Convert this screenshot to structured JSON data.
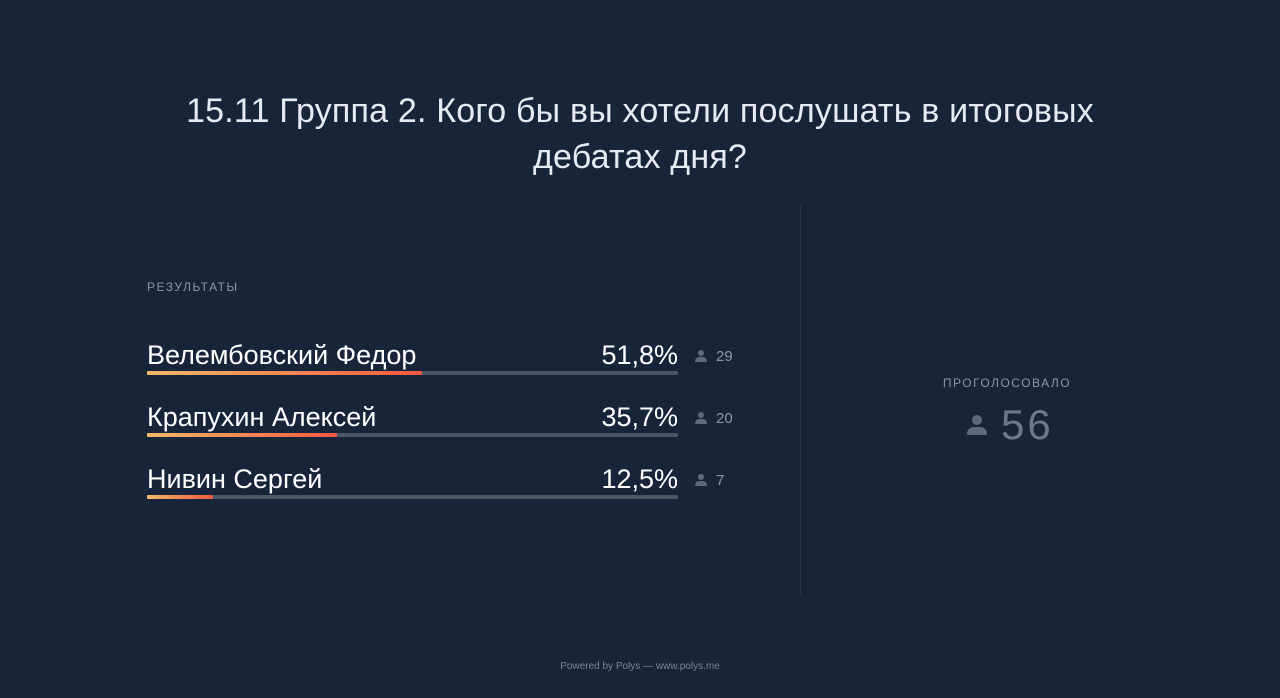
{
  "question": "15.11 Группа 2. Кого бы вы хотели послушать в итоговых дебатах дня?",
  "results_label": "РЕЗУЛЬТАТЫ",
  "options": [
    {
      "name": "Велембовский Федор",
      "percent_label": "51,8%",
      "percent": 51.8,
      "votes": "29"
    },
    {
      "name": "Крапухин Алексей",
      "percent_label": "35,7%",
      "percent": 35.7,
      "votes": "20"
    },
    {
      "name": "Нивин Сергей",
      "percent_label": "12,5%",
      "percent": 12.5,
      "votes": "7"
    }
  ],
  "total": {
    "label": "ПРОГОЛОСОВАЛО",
    "count": "56"
  },
  "footer": "Powered by Polys — www.polys.me",
  "colors": {
    "background": "#18243a",
    "bar_track": "#4a5566",
    "bar_gradient_start": "#f4b868",
    "bar_gradient_end": "#ef5a42"
  },
  "icons": {
    "voter": "person-icon"
  }
}
